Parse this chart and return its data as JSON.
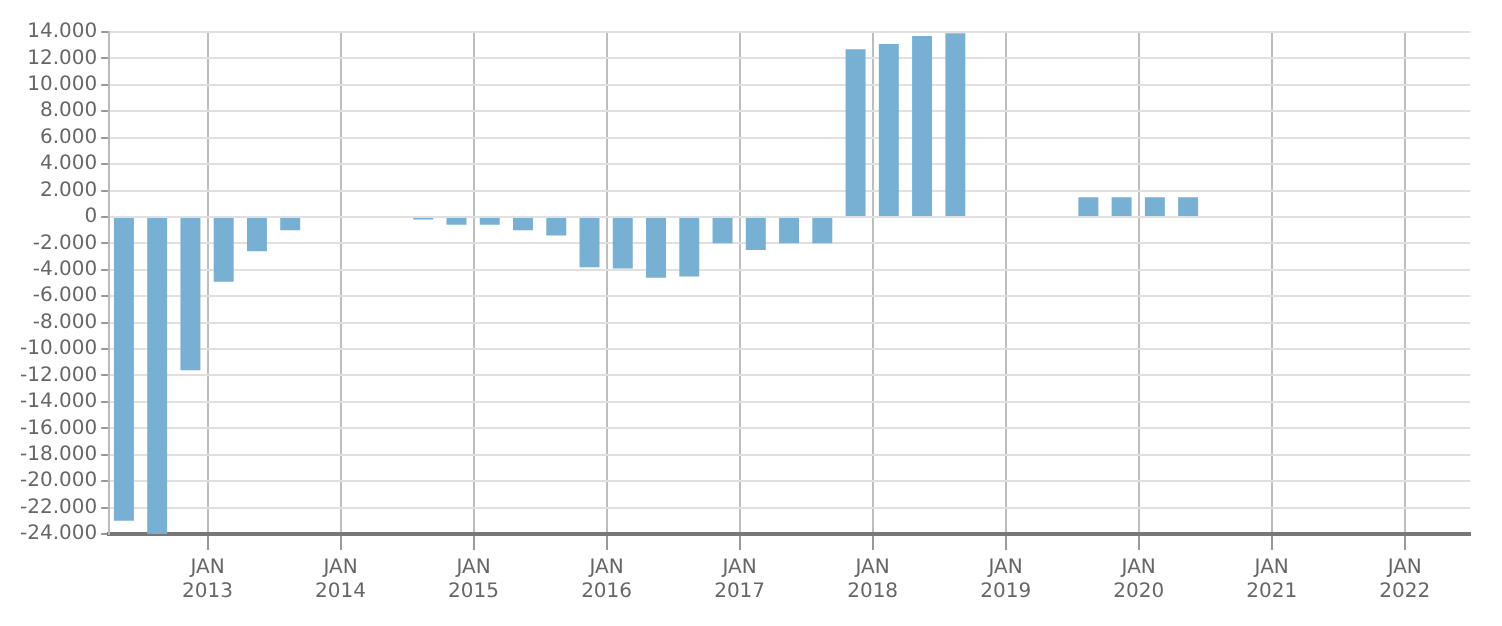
{
  "chart_data": {
    "type": "bar",
    "x": [
      "2012-05-15",
      "2012-08-15",
      "2012-11-15",
      "2013-02-15",
      "2013-05-15",
      "2013-08-15",
      "2013-11-15",
      "2014-02-15",
      "2014-05-15",
      "2014-08-15",
      "2014-11-15",
      "2015-02-15",
      "2015-05-15",
      "2015-08-15",
      "2015-11-15",
      "2016-02-15",
      "2016-05-15",
      "2016-08-15",
      "2016-11-15",
      "2017-02-15",
      "2017-05-15",
      "2017-08-15",
      "2017-11-15",
      "2018-02-15",
      "2018-05-15",
      "2018-08-15",
      "2018-11-15",
      "2019-02-15",
      "2019-05-15",
      "2019-08-15",
      "2019-11-15",
      "2020-02-15",
      "2020-05-15",
      "2020-08-15",
      "2020-11-15",
      "2021-02-15",
      "2021-05-15",
      "2021-08-15",
      "2021-11-15",
      "2022-02-15",
      "2022-05-15"
    ],
    "values": [
      -23000,
      -24000,
      -11600,
      -4900,
      -2600,
      -1000,
      0,
      0,
      0,
      -200,
      -600,
      -600,
      -1000,
      -1400,
      -3800,
      -3900,
      -4600,
      -4500,
      -2000,
      -2500,
      -2000,
      -2000,
      12700,
      13100,
      13700,
      13900,
      0,
      0,
      0,
      1500,
      1500,
      1500,
      1500,
      0,
      0,
      0,
      0,
      0,
      0,
      0,
      0
    ],
    "color": "#78b0d4",
    "xlim": [
      "2012-04-05",
      "2022-06-28"
    ],
    "xticks": [
      {
        "value": "2013-01-01",
        "label": "JAN 2013"
      },
      {
        "value": "2014-01-01",
        "label": "JAN 2014"
      },
      {
        "value": "2015-01-01",
        "label": "JAN 2015"
      },
      {
        "value": "2016-01-01",
        "label": "JAN 2016"
      },
      {
        "value": "2017-01-01",
        "label": "JAN 2017"
      },
      {
        "value": "2018-01-01",
        "label": "JAN 2018"
      },
      {
        "value": "2019-01-01",
        "label": "JAN 2019"
      },
      {
        "value": "2020-01-01",
        "label": "JAN 2020"
      },
      {
        "value": "2021-01-01",
        "label": "JAN 2021"
      },
      {
        "value": "2022-01-01",
        "label": "JAN 2022"
      }
    ],
    "ylim": [
      -24000,
      14000
    ],
    "yticks": [
      {
        "value": 14000,
        "label": "14.000"
      },
      {
        "value": 12000,
        "label": "12.000"
      },
      {
        "value": 10000,
        "label": "10.000"
      },
      {
        "value": 8000,
        "label": "8.000"
      },
      {
        "value": 6000,
        "label": "6.000"
      },
      {
        "value": 4000,
        "label": "4.000"
      },
      {
        "value": 2000,
        "label": "2.000"
      },
      0,
      {
        "value": -2000,
        "label": "-2.000"
      },
      {
        "value": -4000,
        "label": "-4.000"
      },
      {
        "value": -6000,
        "label": "-6.000"
      },
      {
        "value": -8000,
        "label": "-8.000"
      },
      {
        "value": -10000,
        "label": "-10.000"
      },
      {
        "value": -12000,
        "label": "-12.000"
      },
      {
        "value": -14000,
        "label": "-14.000"
      },
      {
        "value": -16000,
        "label": "-16.000"
      },
      {
        "value": -18000,
        "label": "-18.000"
      },
      {
        "value": -20000,
        "label": "-20.000"
      },
      {
        "value": -22000,
        "label": "-22.000"
      },
      {
        "value": -24000,
        "label": "-24.000"
      }
    ],
    "grid": true
  }
}
